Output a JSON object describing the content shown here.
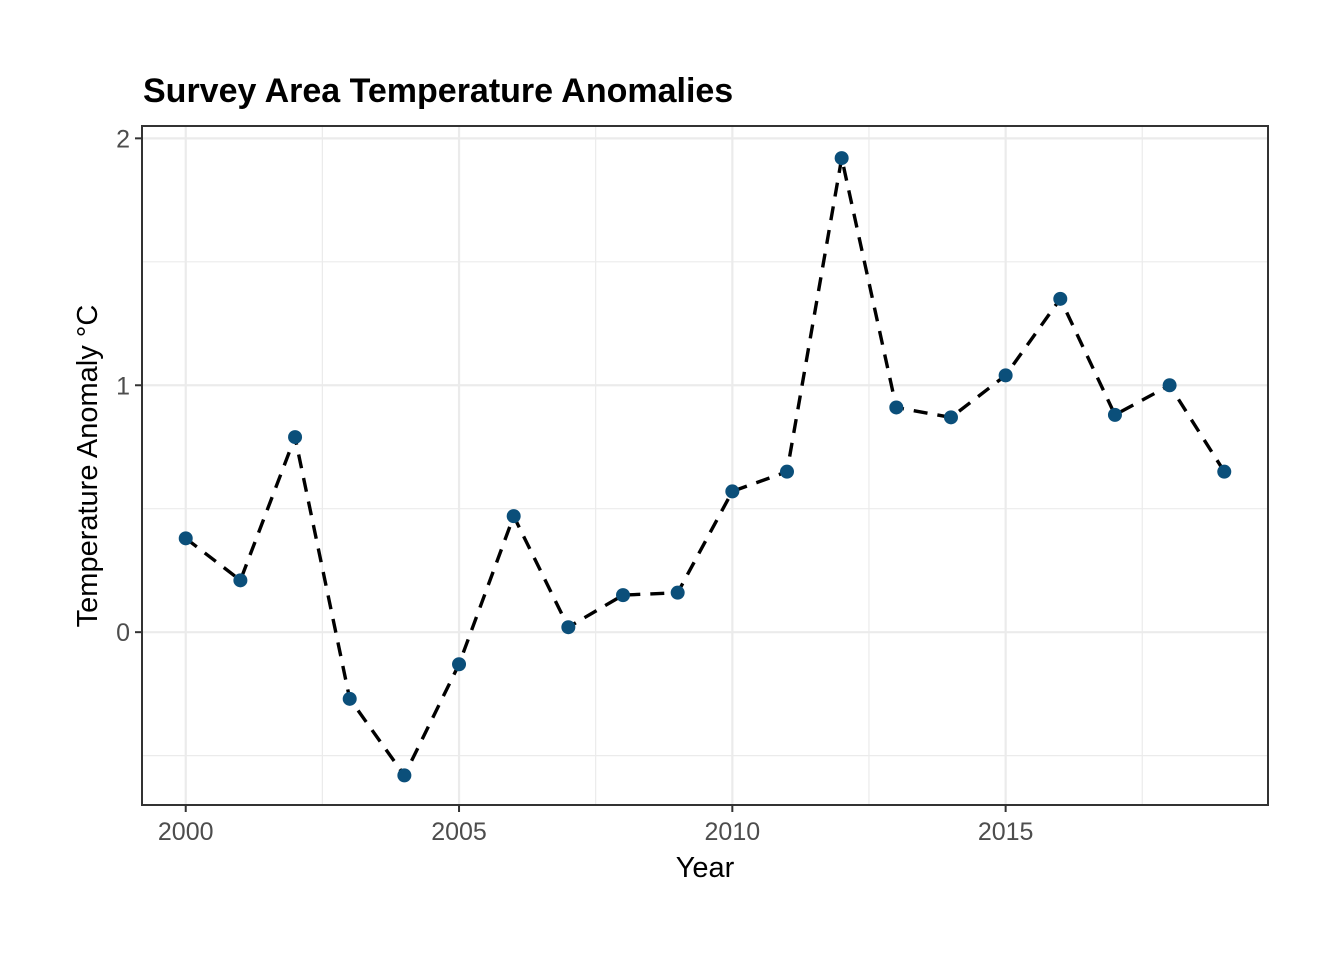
{
  "chart_data": {
    "type": "line",
    "title": "Survey Area Temperature Anomalies",
    "xlabel": "Year",
    "ylabel": "Temperature Anomaly °C",
    "xlim": [
      1999.2,
      2019.8
    ],
    "ylim": [
      -0.7,
      2.05
    ],
    "x_ticks": [
      2000,
      2005,
      2010,
      2015
    ],
    "y_ticks": [
      0,
      1,
      2
    ],
    "x_minor_ticks": [
      2002.5,
      2007.5,
      2012.5,
      2017.5
    ],
    "y_minor_ticks": [
      -0.5,
      0.5,
      1.5
    ],
    "grid": true,
    "line_style": "dashed",
    "colors": {
      "point": "#0b4f7a",
      "line": "#000000",
      "grid": "#ebebeb",
      "frame": "#333333"
    },
    "series": [
      {
        "x": [
          2000,
          2001,
          2002,
          2003,
          2004,
          2005,
          2006,
          2007,
          2008,
          2009,
          2010,
          2011,
          2012,
          2013,
          2014,
          2015,
          2016,
          2017,
          2018,
          2019
        ],
        "y": [
          0.38,
          0.21,
          0.79,
          -0.27,
          -0.58,
          -0.13,
          0.47,
          0.02,
          0.15,
          0.16,
          0.57,
          0.65,
          1.92,
          0.91,
          0.87,
          1.04,
          1.35,
          0.88,
          1.0,
          0.65
        ]
      }
    ]
  }
}
